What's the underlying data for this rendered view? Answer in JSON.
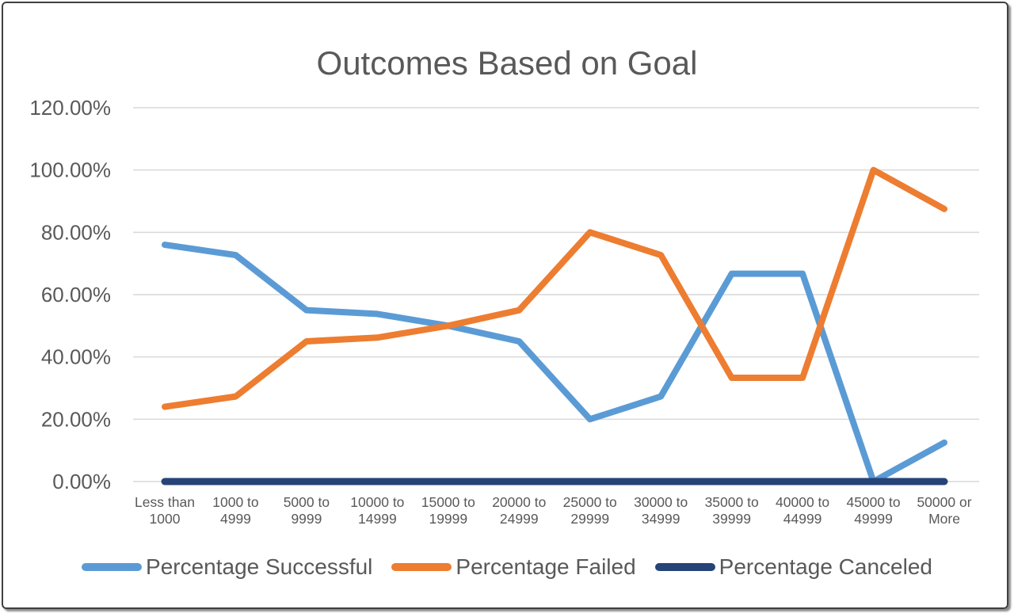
{
  "page": {
    "background": "#ffffff",
    "frame_border_color": "#404040"
  },
  "chart_data": {
    "type": "line",
    "title": "Outcomes Based on Goal",
    "categories": [
      "Less than 1000",
      "1000 to 4999",
      "5000 to 9999",
      "10000 to 14999",
      "15000 to 19999",
      "20000 to 24999",
      "25000 to 29999",
      "30000 to 34999",
      "35000 to 39999",
      "40000 to 44999",
      "45000 to 49999",
      "50000 or More"
    ],
    "series": [
      {
        "name": "Percentage Successful",
        "color": "#5B9BD5",
        "values": [
          76.0,
          72.7,
          55.0,
          53.8,
          50.0,
          45.0,
          20.0,
          27.3,
          66.7,
          66.7,
          0.0,
          12.5
        ]
      },
      {
        "name": "Percentage Failed",
        "color": "#ED7D31",
        "values": [
          24.0,
          27.3,
          45.0,
          46.2,
          50.0,
          55.0,
          80.0,
          72.7,
          33.3,
          33.3,
          100.0,
          87.5
        ]
      },
      {
        "name": "Percentage Canceled",
        "color": "#264478",
        "values": [
          0.0,
          0.0,
          0.0,
          0.0,
          0.0,
          0.0,
          0.0,
          0.0,
          0.0,
          0.0,
          0.0,
          0.0
        ]
      }
    ],
    "y_axis": {
      "tick_labels": [
        "0.00%",
        "20.00%",
        "40.00%",
        "60.00%",
        "80.00%",
        "100.00%",
        "120.00%"
      ],
      "min": 0,
      "max": 120,
      "step": 20
    },
    "grid": true,
    "legend_position": "bottom",
    "text_color": "#595959",
    "gridline_color": "#D9D9D9"
  }
}
